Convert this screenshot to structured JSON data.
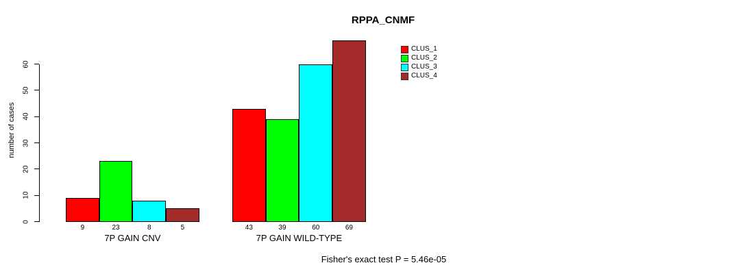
{
  "chart": {
    "title": "RPPA_CNMF",
    "ylabel": "number of cases",
    "footer": "Fisher's exact test P = 5.46e-05"
  },
  "chart_data": {
    "type": "bar",
    "title": "RPPA_CNMF",
    "xlabel": "",
    "ylabel": "number of cases",
    "categories": [
      "7P GAIN CNV",
      "7P GAIN WILD-TYPE"
    ],
    "series": [
      {
        "name": "CLUS_1",
        "color": "#ff0000",
        "values": [
          9,
          43
        ]
      },
      {
        "name": "CLUS_2",
        "color": "#00ff00",
        "values": [
          23,
          39
        ]
      },
      {
        "name": "CLUS_3",
        "color": "#00ffff",
        "values": [
          8,
          60
        ]
      },
      {
        "name": "CLUS_4",
        "color": "#a52a2a",
        "values": [
          5,
          69
        ]
      }
    ],
    "bar_value_labels": [
      [
        9,
        23,
        8,
        5
      ],
      [
        43,
        39,
        60,
        69
      ]
    ],
    "y_ticks": [
      0,
      10,
      20,
      30,
      40,
      50,
      60
    ],
    "ylim": [
      0,
      72
    ],
    "grid": false,
    "legend_position": "top-right",
    "legend_entries": [
      "CLUS_1",
      "CLUS_2",
      "CLUS_3",
      "CLUS_4"
    ],
    "annotation": "Fisher's exact test P = 5.46e-05",
    "axis_color": "#000000",
    "background_color": "#ffffff"
  }
}
